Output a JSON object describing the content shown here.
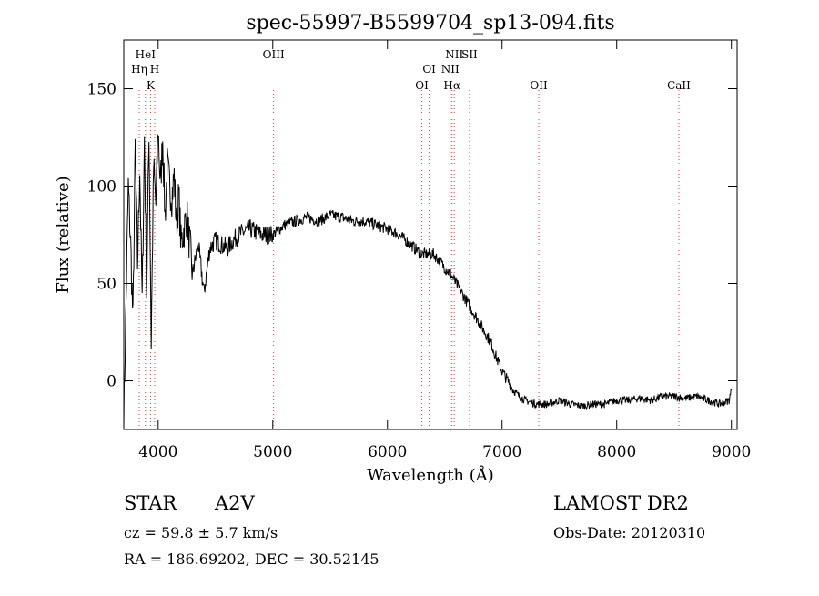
{
  "chart_data": {
    "type": "line",
    "title": "spec-55997-B5599704_sp13-094.fits",
    "xlabel": "Wavelength (Å)",
    "ylabel": "Flux (relative)",
    "xlim": [
      3700,
      9050
    ],
    "ylim": [
      -25,
      175
    ],
    "x_ticks": [
      4000,
      5000,
      6000,
      7000,
      8000,
      9000
    ],
    "y_ticks": [
      0,
      50,
      100,
      150
    ],
    "grid": false,
    "series": [
      {
        "x": [
          3700,
          3720,
          3740,
          3760,
          3780,
          3800,
          3820,
          3840,
          3860,
          3880,
          3900,
          3920,
          3940,
          3960,
          3980,
          4000,
          4020,
          4040,
          4060,
          4080,
          4100,
          4120,
          4140,
          4160,
          4180,
          4200,
          4250,
          4300,
          4350,
          4400,
          4450,
          4500,
          4600,
          4700,
          4800,
          4900,
          5000,
          5100,
          5200,
          5300,
          5400,
          5500,
          5600,
          5700,
          5800,
          5900,
          6000,
          6100,
          6200,
          6300,
          6400,
          6450,
          6500,
          6550,
          6600,
          6650,
          6700,
          6750,
          6800,
          6850,
          6900,
          6950,
          7000,
          7050,
          7100,
          7150,
          7200,
          7300,
          7400,
          7500,
          7600,
          7700,
          7800,
          7900,
          8000,
          8100,
          8200,
          8300,
          8400,
          8500,
          8600,
          8700,
          8800,
          8900,
          8980,
          9000
        ],
        "y": [
          -20,
          40,
          100,
          70,
          30,
          120,
          60,
          110,
          40,
          125,
          45,
          130,
          20,
          110,
          90,
          130,
          100,
          125,
          85,
          110,
          100,
          95,
          105,
          80,
          95,
          70,
          85,
          55,
          70,
          45,
          68,
          72,
          68,
          75,
          78,
          75,
          75,
          80,
          82,
          84,
          82,
          85,
          84,
          82,
          82,
          80,
          78,
          75,
          70,
          65,
          65,
          62,
          58,
          55,
          50,
          45,
          40,
          35,
          30,
          25,
          20,
          12,
          5,
          0,
          -5,
          -8,
          -10,
          -12,
          -12,
          -10,
          -12,
          -13,
          -12,
          -12,
          -10,
          -10,
          -9,
          -10,
          -8,
          -8,
          -9,
          -8,
          -10,
          -12,
          -10,
          -5
        ]
      }
    ],
    "annotations": [
      {
        "label": "HeI",
        "x": 3889
      },
      {
        "label": "Hη",
        "x": 3835
      },
      {
        "label": "H",
        "x": 3970
      },
      {
        "label": "K",
        "x": 3934
      },
      {
        "label": "OIII",
        "x": 5007
      },
      {
        "label": "OI",
        "x": 6364
      },
      {
        "label": "OI",
        "x": 6300
      },
      {
        "label": "NII",
        "x": 6583
      },
      {
        "label": "SII",
        "x": 6716
      },
      {
        "label": "NII",
        "x": 6548
      },
      {
        "label": "Hα",
        "x": 6563
      },
      {
        "label": "OII",
        "x": 7320
      },
      {
        "label": "CaII",
        "x": 8542
      }
    ]
  },
  "info": {
    "star_label": "STAR",
    "spectral_type": "A2V",
    "cz": "cz = 59.8 ± 5.7 km/s",
    "radec": "RA = 186.69202, DEC =  30.52145",
    "survey": "LAMOST DR2",
    "obs_date": "Obs-Date: 20120310"
  }
}
